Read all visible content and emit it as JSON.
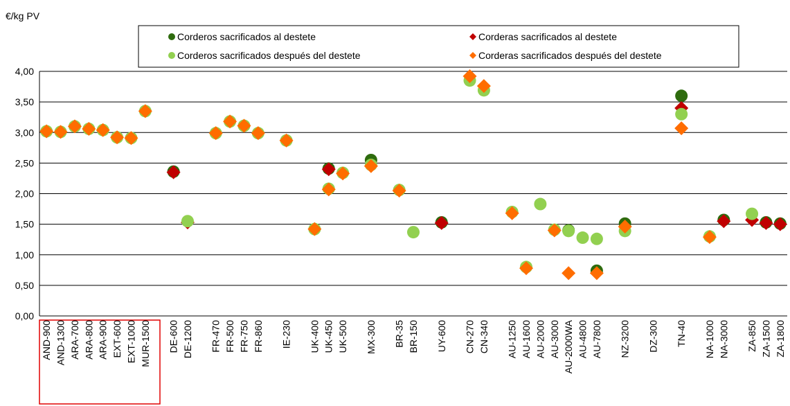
{
  "chart_data": {
    "type": "scatter",
    "y_label": "€/kg PV",
    "categories": [
      "AND-900",
      "AND-1300",
      "ARA-700",
      "ARA-800",
      "ARA-900",
      "EXT-600",
      "EXT-1000",
      "MUR-1500",
      null,
      "DE-600",
      "DE-1200",
      null,
      "FR-470",
      "FR-500",
      "FR-750",
      "FR-860",
      null,
      "IE-230",
      null,
      "UK-400",
      "UK-450",
      "UK-500",
      null,
      "MX-300",
      null,
      "BR-35",
      "BR-150",
      null,
      "UY-600",
      null,
      "CN-270",
      "CN-340",
      null,
      "AU-1250",
      "AU-1600",
      "AU-2000",
      "AU-3000",
      "AU-2000WA",
      "AU-4800",
      "AU-7800",
      null,
      "NZ-3200",
      null,
      "DZ-300",
      null,
      "TN-40",
      null,
      "NA-1000",
      "NA-3000",
      null,
      "ZA-850",
      "ZA-1500",
      "ZA-1800"
    ],
    "series": [
      {
        "name": "Corderos sacrificados al destete",
        "color": "#2e6b0e",
        "marker": "circle",
        "values": [
          null,
          null,
          null,
          null,
          null,
          null,
          null,
          null,
          null,
          2.36,
          null,
          null,
          null,
          null,
          null,
          null,
          null,
          null,
          null,
          null,
          2.41,
          null,
          null,
          2.55,
          null,
          null,
          null,
          null,
          1.53,
          null,
          null,
          null,
          null,
          null,
          null,
          null,
          null,
          1.4,
          null,
          0.74,
          null,
          1.51,
          null,
          null,
          null,
          3.6,
          null,
          null,
          1.57,
          null,
          null,
          1.53,
          1.51
        ]
      },
      {
        "name": "Corderas sacrificados al destete",
        "color": "#c00000",
        "marker": "diamond",
        "values": [
          null,
          null,
          null,
          null,
          null,
          null,
          null,
          null,
          null,
          2.35,
          1.53,
          null,
          null,
          null,
          null,
          null,
          null,
          null,
          null,
          null,
          2.4,
          null,
          null,
          null,
          null,
          null,
          null,
          null,
          1.52,
          null,
          null,
          null,
          null,
          null,
          null,
          null,
          null,
          null,
          null,
          null,
          null,
          null,
          null,
          null,
          null,
          3.4,
          null,
          null,
          1.55,
          null,
          1.57,
          1.52,
          1.5
        ]
      },
      {
        "name": "Corderos sacrificados después del destete",
        "color": "#92d050",
        "marker": "circle",
        "values": [
          3.02,
          3.01,
          3.1,
          3.06,
          3.04,
          2.92,
          2.91,
          3.35,
          null,
          null,
          1.55,
          null,
          2.99,
          3.18,
          3.11,
          2.99,
          null,
          2.87,
          null,
          1.42,
          2.08,
          2.34,
          null,
          2.47,
          null,
          2.06,
          1.37,
          null,
          null,
          null,
          3.85,
          3.69,
          null,
          1.7,
          0.8,
          1.83,
          1.41,
          1.39,
          1.28,
          1.26,
          null,
          1.39,
          null,
          null,
          null,
          3.3,
          null,
          1.3,
          null,
          null,
          1.67,
          null,
          null
        ]
      },
      {
        "name": "Corderas sacrificados después del destete",
        "color": "#ff6d00",
        "marker": "diamond",
        "values": [
          3.02,
          3.01,
          3.1,
          3.06,
          3.04,
          2.92,
          2.91,
          3.35,
          null,
          null,
          null,
          null,
          2.99,
          3.18,
          3.11,
          2.99,
          null,
          2.87,
          null,
          1.42,
          2.07,
          2.33,
          null,
          2.45,
          null,
          2.05,
          null,
          null,
          null,
          null,
          3.92,
          3.76,
          null,
          1.68,
          0.78,
          null,
          1.4,
          0.7,
          null,
          0.7,
          null,
          1.46,
          null,
          null,
          null,
          3.07,
          null,
          1.29,
          null,
          null,
          null,
          null,
          null
        ]
      }
    ],
    "ylim": [
      0,
      4
    ],
    "yticks": [
      {
        "value": 0,
        "label": "0,00"
      },
      {
        "value": 0.5,
        "label": "0,50"
      },
      {
        "value": 1,
        "label": "1,00"
      },
      {
        "value": 1.5,
        "label": "1,50"
      },
      {
        "value": 2,
        "label": "2,00"
      },
      {
        "value": 2.5,
        "label": "2,50"
      },
      {
        "value": 3,
        "label": "3,00"
      },
      {
        "value": 3.5,
        "label": "3,50"
      },
      {
        "value": 4,
        "label": "4,00"
      }
    ],
    "grid": true
  }
}
